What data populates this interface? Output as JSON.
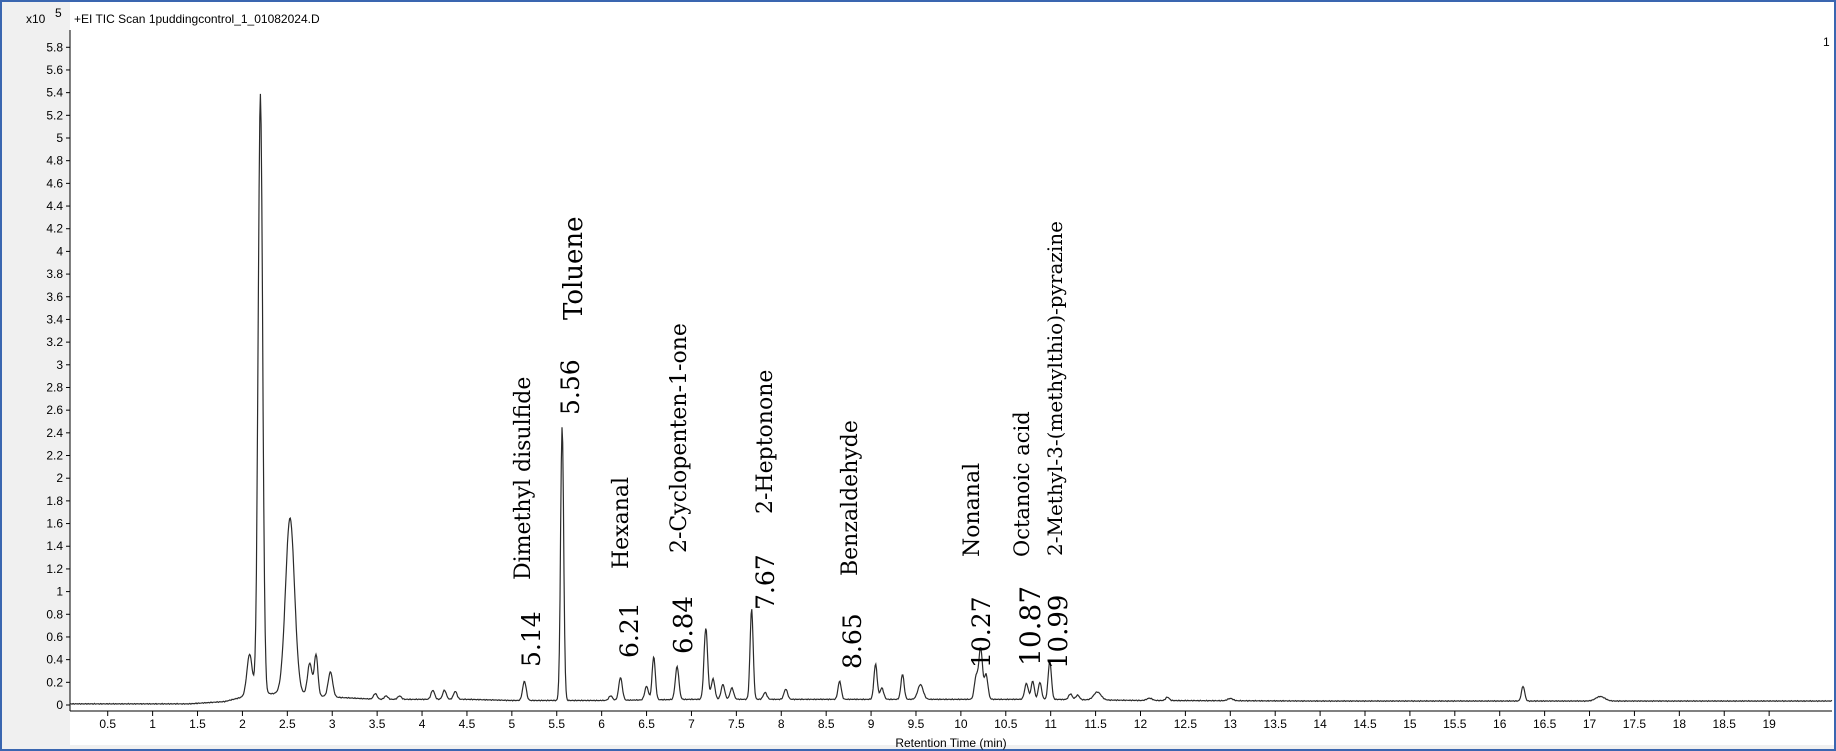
{
  "header": {
    "title": "+EI TIC Scan 1puddingcontrol_1_01082024.D",
    "panel_number": "1",
    "y_multiplier_base": "x10",
    "y_multiplier_exp": "5"
  },
  "chart_data": {
    "type": "line",
    "title": "+EI TIC Scan 1puddingcontrol_1_01082024.D",
    "xlabel": "Retention Time (min)",
    "ylabel": "",
    "xlim": [
      0.08,
      19.7
    ],
    "ylim": [
      -0.05,
      5.95
    ],
    "y_scale_label": "x10^5",
    "x_ticks": [
      "0.5",
      "1",
      "1.5",
      "2",
      "2.5",
      "3",
      "3.5",
      "4",
      "4.5",
      "5",
      "5.5",
      "6",
      "6.5",
      "7",
      "7.5",
      "8",
      "8.5",
      "9",
      "9.5",
      "10",
      "10.5",
      "11",
      "11.5",
      "12",
      "12.5",
      "13",
      "13.5",
      "14",
      "14.5",
      "15",
      "15.5",
      "16",
      "16.5",
      "17",
      "17.5",
      "18",
      "18.5",
      "19"
    ],
    "y_ticks": [
      "0",
      "0.2",
      "0.4",
      "0.6",
      "0.8",
      "1",
      "1.2",
      "1.4",
      "1.6",
      "1.8",
      "2",
      "2.2",
      "2.4",
      "2.6",
      "2.8",
      "3",
      "3.2",
      "3.4",
      "3.6",
      "3.8",
      "4",
      "4.2",
      "4.4",
      "4.6",
      "4.8",
      "5",
      "5.2",
      "5.4",
      "5.6",
      "5.8"
    ],
    "grid": false,
    "legend": "none",
    "line_color": "#2b2b2b",
    "baseline": [
      [
        0.08,
        0.01
      ],
      [
        1.4,
        0.01
      ],
      [
        1.8,
        0.03
      ],
      [
        2.0,
        0.07
      ],
      [
        2.3,
        0.1
      ],
      [
        2.6,
        0.1
      ],
      [
        3.0,
        0.07
      ],
      [
        3.5,
        0.05
      ],
      [
        4.0,
        0.05
      ],
      [
        4.5,
        0.05
      ],
      [
        5.0,
        0.04
      ],
      [
        6.0,
        0.04
      ],
      [
        7.0,
        0.05
      ],
      [
        8.0,
        0.05
      ],
      [
        9.0,
        0.05
      ],
      [
        10.0,
        0.05
      ],
      [
        11.0,
        0.05
      ],
      [
        12.0,
        0.04
      ],
      [
        14.0,
        0.035
      ],
      [
        16.0,
        0.035
      ],
      [
        19.7,
        0.035
      ]
    ],
    "peaks": [
      {
        "rt": 2.08,
        "h": 0.37,
        "w": 0.03
      },
      {
        "rt": 2.2,
        "h": 5.3,
        "w": 0.025
      },
      {
        "rt": 2.53,
        "h": 1.55,
        "w": 0.05
      },
      {
        "rt": 2.75,
        "h": 0.28,
        "w": 0.025
      },
      {
        "rt": 2.82,
        "h": 0.36,
        "w": 0.02
      },
      {
        "rt": 2.98,
        "h": 0.22,
        "w": 0.025
      },
      {
        "rt": 3.48,
        "h": 0.05,
        "w": 0.02
      },
      {
        "rt": 3.6,
        "h": 0.03,
        "w": 0.02
      },
      {
        "rt": 3.75,
        "h": 0.03,
        "w": 0.02
      },
      {
        "rt": 4.12,
        "h": 0.08,
        "w": 0.02
      },
      {
        "rt": 4.25,
        "h": 0.08,
        "w": 0.02
      },
      {
        "rt": 4.37,
        "h": 0.07,
        "w": 0.02
      },
      {
        "rt": 5.14,
        "h": 0.17,
        "w": 0.02
      },
      {
        "rt": 5.56,
        "h": 2.42,
        "w": 0.017
      },
      {
        "rt": 6.1,
        "h": 0.04,
        "w": 0.02
      },
      {
        "rt": 6.21,
        "h": 0.2,
        "w": 0.02
      },
      {
        "rt": 6.5,
        "h": 0.12,
        "w": 0.02
      },
      {
        "rt": 6.58,
        "h": 0.38,
        "w": 0.018
      },
      {
        "rt": 6.84,
        "h": 0.29,
        "w": 0.02
      },
      {
        "rt": 7.16,
        "h": 0.63,
        "w": 0.02
      },
      {
        "rt": 7.24,
        "h": 0.18,
        "w": 0.02
      },
      {
        "rt": 7.35,
        "h": 0.13,
        "w": 0.02
      },
      {
        "rt": 7.45,
        "h": 0.1,
        "w": 0.02
      },
      {
        "rt": 7.67,
        "h": 0.8,
        "w": 0.017
      },
      {
        "rt": 7.82,
        "h": 0.06,
        "w": 0.02
      },
      {
        "rt": 8.05,
        "h": 0.09,
        "w": 0.02
      },
      {
        "rt": 8.65,
        "h": 0.16,
        "w": 0.018
      },
      {
        "rt": 9.05,
        "h": 0.31,
        "w": 0.018
      },
      {
        "rt": 9.12,
        "h": 0.1,
        "w": 0.02
      },
      {
        "rt": 9.35,
        "h": 0.22,
        "w": 0.018
      },
      {
        "rt": 9.55,
        "h": 0.13,
        "w": 0.03
      },
      {
        "rt": 10.17,
        "h": 0.2,
        "w": 0.02
      },
      {
        "rt": 10.22,
        "h": 0.45,
        "w": 0.02
      },
      {
        "rt": 10.28,
        "h": 0.22,
        "w": 0.02
      },
      {
        "rt": 10.73,
        "h": 0.14,
        "w": 0.02
      },
      {
        "rt": 10.8,
        "h": 0.16,
        "w": 0.018
      },
      {
        "rt": 10.88,
        "h": 0.15,
        "w": 0.018
      },
      {
        "rt": 10.99,
        "h": 0.34,
        "w": 0.018
      },
      {
        "rt": 11.22,
        "h": 0.05,
        "w": 0.02
      },
      {
        "rt": 11.3,
        "h": 0.04,
        "w": 0.02
      },
      {
        "rt": 11.52,
        "h": 0.07,
        "w": 0.04
      },
      {
        "rt": 12.1,
        "h": 0.02,
        "w": 0.03
      },
      {
        "rt": 12.3,
        "h": 0.03,
        "w": 0.02
      },
      {
        "rt": 13.0,
        "h": 0.02,
        "w": 0.03
      },
      {
        "rt": 16.26,
        "h": 0.13,
        "w": 0.018
      },
      {
        "rt": 17.12,
        "h": 0.04,
        "w": 0.05
      }
    ],
    "annotations": [
      {
        "rt_label": "5.14",
        "name": "Dimethyl disulfide",
        "rt": 5.14
      },
      {
        "rt_label": "5.56",
        "name": "Toluene",
        "rt": 5.56
      },
      {
        "rt_label": "6.21",
        "name": "Hexanal",
        "rt": 6.21
      },
      {
        "rt_label": "6.84",
        "name": "2-Cyclopenten-1-one",
        "rt": 6.84
      },
      {
        "rt_label": "7.67",
        "name": "2-Heptonone",
        "rt": 7.67
      },
      {
        "rt_label": "8.65",
        "name": "Benzaldehyde",
        "rt": 8.65
      },
      {
        "rt_label": "10.27",
        "name": "Nonanal",
        "rt": 10.27
      },
      {
        "rt_label": "10.87",
        "name": "Octanoic acid",
        "rt": 10.87
      },
      {
        "rt_label": "10.99",
        "name": "2-Methyl-3-(methylthio)-pyrazine",
        "rt": 10.99
      }
    ]
  }
}
